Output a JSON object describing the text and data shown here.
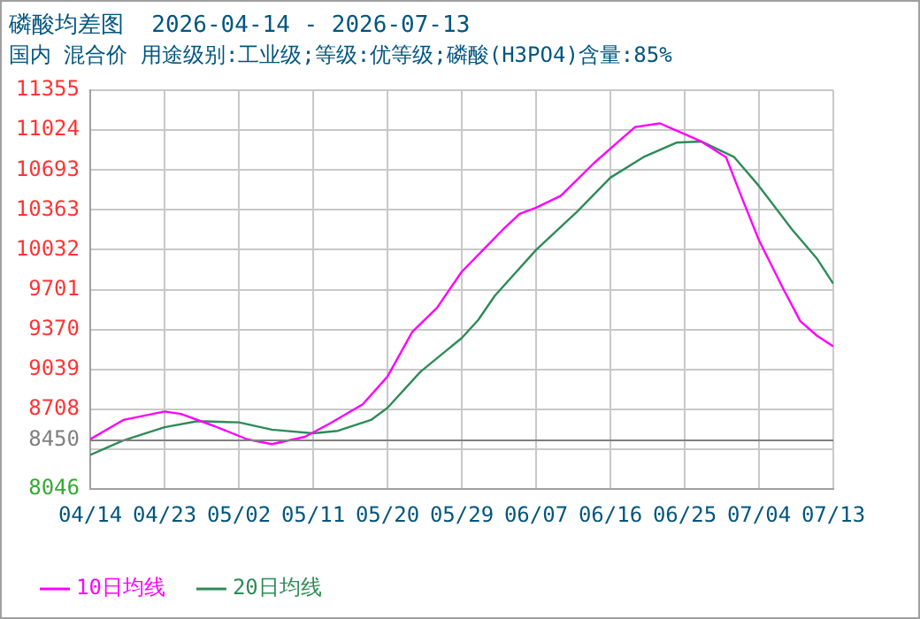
{
  "chart_data": {
    "type": "line",
    "title": "磷酸均差图  2026-04-14 - 2026-07-13",
    "subtitle": "国内 混合价 用途级别:工业级;等级:优等级;磷酸(H3PO4)含量:85%",
    "series": [
      {
        "name": "10日均线",
        "color": "#ff00ff",
        "x": [
          "2026-04-14",
          "2026-04-18",
          "2026-04-23",
          "2026-04-25",
          "2026-04-29",
          "2026-05-03",
          "2026-05-06",
          "2026-05-10",
          "2026-05-13",
          "2026-05-17",
          "2026-05-20",
          "2026-05-23",
          "2026-05-26",
          "2026-05-29",
          "2026-05-31",
          "2026-06-03",
          "2026-06-05",
          "2026-06-07",
          "2026-06-10",
          "2026-06-14",
          "2026-06-17",
          "2026-06-19",
          "2026-06-22",
          "2026-06-24",
          "2026-06-27",
          "2026-06-30",
          "2026-07-02",
          "2026-07-04",
          "2026-07-07",
          "2026-07-09",
          "2026-07-11",
          "2026-07-13"
        ],
        "values": [
          8460,
          8620,
          8690,
          8670,
          8570,
          8460,
          8420,
          8480,
          8590,
          8750,
          8980,
          9350,
          9550,
          9850,
          9990,
          10200,
          10330,
          10380,
          10480,
          10750,
          10930,
          11050,
          11080,
          11020,
          10930,
          10800,
          10450,
          10110,
          9700,
          9440,
          9320,
          9230
        ]
      },
      {
        "name": "20日均线",
        "color": "#2e8b57",
        "x": [
          "2026-04-14",
          "2026-04-18",
          "2026-04-23",
          "2026-04-27",
          "2026-05-02",
          "2026-05-06",
          "2026-05-11",
          "2026-05-14",
          "2026-05-18",
          "2026-05-20",
          "2026-05-24",
          "2026-05-29",
          "2026-05-31",
          "2026-06-02",
          "2026-06-07",
          "2026-06-12",
          "2026-06-16",
          "2026-06-20",
          "2026-06-24",
          "2026-06-27",
          "2026-07-01",
          "2026-07-04",
          "2026-07-08",
          "2026-07-11",
          "2026-07-13"
        ],
        "values": [
          8330,
          8450,
          8560,
          8610,
          8600,
          8540,
          8510,
          8530,
          8620,
          8720,
          9020,
          9300,
          9450,
          9650,
          10030,
          10350,
          10630,
          10800,
          10920,
          10930,
          10800,
          10560,
          10200,
          9960,
          9750
        ]
      }
    ],
    "xlim": [
      "2026-04-14",
      "2026-07-13"
    ],
    "xticks": [
      {
        "value": "2026-04-14",
        "label": "04/14"
      },
      {
        "value": "2026-04-23",
        "label": "04/23"
      },
      {
        "value": "2026-05-02",
        "label": "05/02"
      },
      {
        "value": "2026-05-11",
        "label": "05/11"
      },
      {
        "value": "2026-05-20",
        "label": "05/20"
      },
      {
        "value": "2026-05-29",
        "label": "05/29"
      },
      {
        "value": "2026-06-07",
        "label": "06/07"
      },
      {
        "value": "2026-06-16",
        "label": "06/16"
      },
      {
        "value": "2026-06-25",
        "label": "06/25"
      },
      {
        "value": "2026-07-04",
        "label": "07/04"
      },
      {
        "value": "2026-07-13",
        "label": "07/13"
      }
    ],
    "ylim": [
      8046,
      11355
    ],
    "yticks": [
      8046,
      {
        "value": 8377,
        "label": null
      },
      8708,
      9039,
      9370,
      9701,
      10032,
      10363,
      10693,
      11024,
      11355
    ],
    "ref_lines": [
      {
        "axis": "y",
        "value": 8450,
        "label": "8450",
        "color": "#808080"
      }
    ],
    "grid": true,
    "legend": "bottom",
    "marker": "none",
    "line_style": "solid"
  }
}
